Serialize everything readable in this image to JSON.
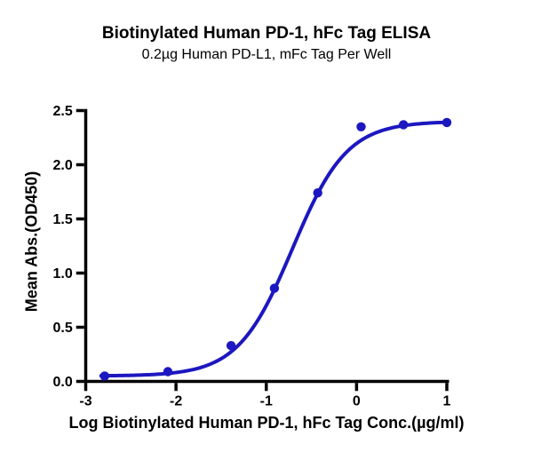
{
  "figure": {
    "title": "Biotinylated Human PD-1, hFc Tag ELISA",
    "subtitle": "0.2µg Human PD-L1, mFc Tag Per Well"
  },
  "chart_data": {
    "type": "scatter",
    "title": "Biotinylated Human PD-1, hFc Tag ELISA",
    "subtitle": "0.2µg Human PD-L1, mFc Tag Per Well",
    "xlabel": "Log Biotinylated Human PD-1, hFc Tag Conc.(µg/ml)",
    "ylabel": "Mean Abs.(OD450)",
    "xlim": [
      -3,
      1
    ],
    "ylim": [
      0,
      2.5
    ],
    "xticks": [
      -3,
      -2,
      -1,
      0,
      1
    ],
    "xtick_labels": [
      "-3",
      "-2",
      "-1",
      "0",
      "1"
    ],
    "yticks": [
      0,
      0.5,
      1,
      1.5,
      2,
      2.5
    ],
    "ytick_labels": [
      "0.0",
      "0.5",
      "1.0",
      "1.5",
      "2.0",
      "2.5"
    ],
    "grid": false,
    "legend": "none",
    "axis_color": "#000000",
    "series": [
      {
        "name": "Biotinylated Human PD-1, hFc Tag",
        "marker": "circle",
        "color": "#1c17c0",
        "x": [
          -2.79,
          -2.09,
          -1.39,
          -0.91,
          -0.43,
          0.05,
          0.52,
          1.0
        ],
        "y": [
          0.05,
          0.09,
          0.33,
          0.86,
          1.74,
          2.35,
          2.37,
          2.39
        ]
      }
    ],
    "fit_curve": {
      "model": "4PL",
      "bottom": 0.05,
      "top": 2.4,
      "logEC50": -0.71,
      "hillslope": 1.44,
      "x_range": [
        -2.83,
        1.0
      ],
      "color": "#1c17c0"
    }
  }
}
